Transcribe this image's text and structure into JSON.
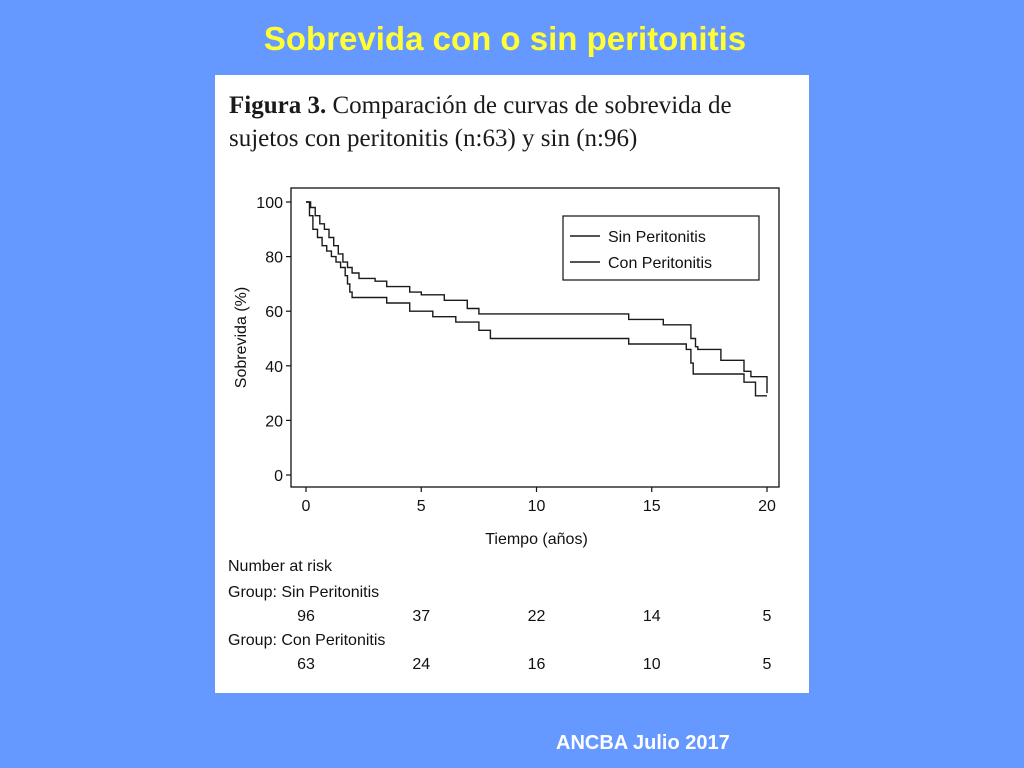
{
  "slide": {
    "title": "Sobrevida con o sin peritonitis",
    "footer": "ANCBA Julio 2017",
    "background": "#6699ff",
    "title_color": "#ffff33"
  },
  "figure": {
    "caption_label": "Figura 3.",
    "caption_text": "Comparación de curvas de sobrevida de sujetos con peritonitis (n:63) y sin (n:96)"
  },
  "chart_data": {
    "type": "line",
    "step": true,
    "xlabel": "Tiempo (años)",
    "ylabel": "Sobrevida (%)",
    "xlim": [
      0,
      20
    ],
    "ylim": [
      0,
      100
    ],
    "xticks": [
      "0",
      "5",
      "10",
      "15",
      "20"
    ],
    "yticks": [
      "100",
      "80",
      "60",
      "40",
      "20",
      "0"
    ],
    "grid": false,
    "legend_position": "top-right",
    "series": [
      {
        "name": "Sin Peritonitis",
        "points": [
          [
            0,
            100
          ],
          [
            0.2,
            98
          ],
          [
            0.4,
            95
          ],
          [
            0.6,
            92
          ],
          [
            0.8,
            90
          ],
          [
            1.0,
            87
          ],
          [
            1.2,
            84
          ],
          [
            1.4,
            81
          ],
          [
            1.6,
            78
          ],
          [
            1.8,
            76
          ],
          [
            2.0,
            74
          ],
          [
            2.3,
            72
          ],
          [
            3.0,
            71
          ],
          [
            3.5,
            69
          ],
          [
            4.5,
            67
          ],
          [
            5.0,
            66
          ],
          [
            6.0,
            64
          ],
          [
            7.0,
            61
          ],
          [
            7.5,
            59
          ],
          [
            10.0,
            59
          ],
          [
            14.0,
            57
          ],
          [
            15.5,
            55
          ],
          [
            16.5,
            55
          ],
          [
            16.7,
            50
          ],
          [
            16.9,
            47
          ],
          [
            17.0,
            46
          ],
          [
            18.0,
            42
          ],
          [
            19.0,
            38
          ],
          [
            19.3,
            36
          ],
          [
            20.0,
            36
          ],
          [
            20.0,
            30
          ]
        ]
      },
      {
        "name": "Con Peritonitis",
        "points": [
          [
            0,
            100
          ],
          [
            0.15,
            95
          ],
          [
            0.3,
            90
          ],
          [
            0.5,
            87
          ],
          [
            0.7,
            84
          ],
          [
            0.9,
            82
          ],
          [
            1.1,
            80
          ],
          [
            1.3,
            78
          ],
          [
            1.5,
            76
          ],
          [
            1.7,
            73
          ],
          [
            1.8,
            70
          ],
          [
            1.9,
            67
          ],
          [
            2.0,
            65
          ],
          [
            3.5,
            63
          ],
          [
            4.5,
            60
          ],
          [
            5.5,
            58
          ],
          [
            6.5,
            56
          ],
          [
            7.5,
            53
          ],
          [
            8.0,
            50
          ],
          [
            13.5,
            50
          ],
          [
            14.0,
            48
          ],
          [
            16.5,
            46
          ],
          [
            16.7,
            41
          ],
          [
            16.8,
            37
          ],
          [
            17.5,
            37
          ],
          [
            19.0,
            34
          ],
          [
            19.5,
            29
          ],
          [
            20.0,
            29
          ]
        ]
      }
    ],
    "number_at_risk": {
      "title": "Number at risk",
      "times": [
        0,
        5,
        10,
        15,
        20
      ],
      "groups": [
        {
          "label": "Group: Sin Peritonitis",
          "values": [
            "96",
            "37",
            "22",
            "14",
            "5"
          ]
        },
        {
          "label": "Group: Con Peritonitis",
          "values": [
            "63",
            "24",
            "16",
            "10",
            "5"
          ]
        }
      ]
    }
  }
}
